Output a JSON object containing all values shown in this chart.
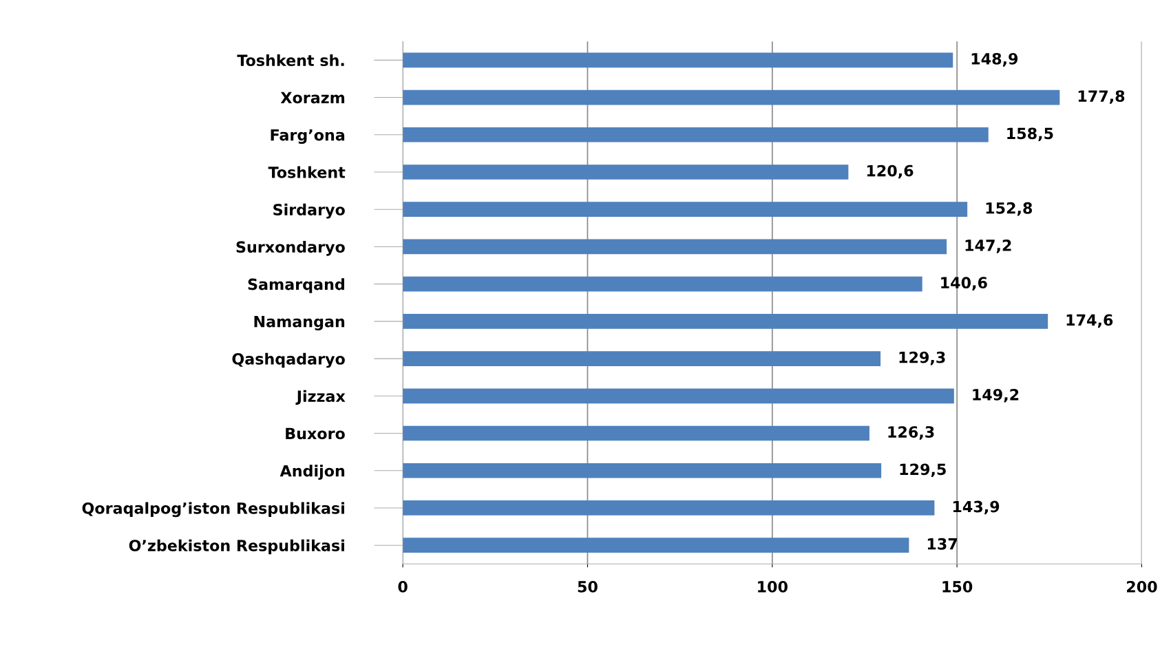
{
  "chart_data": {
    "type": "bar",
    "orientation": "horizontal",
    "categories": [
      "Toshkent sh.",
      "Xorazm",
      "Farg’ona",
      "Toshkent",
      "Sirdaryo",
      "Surxondaryo",
      "Samarqand",
      "Namangan",
      "Qashqadaryo",
      "Jizzax",
      "Buxoro",
      "Andijon",
      "Qoraqalpog’iston Respublikasi",
      "O’zbekiston Respublikasi"
    ],
    "values": [
      148.9,
      177.8,
      158.5,
      120.6,
      152.8,
      147.2,
      140.6,
      174.6,
      129.3,
      149.2,
      126.3,
      129.5,
      143.9,
      137
    ],
    "value_labels": [
      "148,9",
      "177,8",
      "158,5",
      "120,6",
      "152,8",
      "147,2",
      "140,6",
      "174,6",
      "129,3",
      "149,2",
      "126,3",
      "129,5",
      "143,9",
      "137"
    ],
    "color": "#4f81bd",
    "xlim": [
      0,
      200
    ],
    "xticks": [
      0,
      50,
      100,
      150,
      200
    ],
    "grid": "x"
  }
}
